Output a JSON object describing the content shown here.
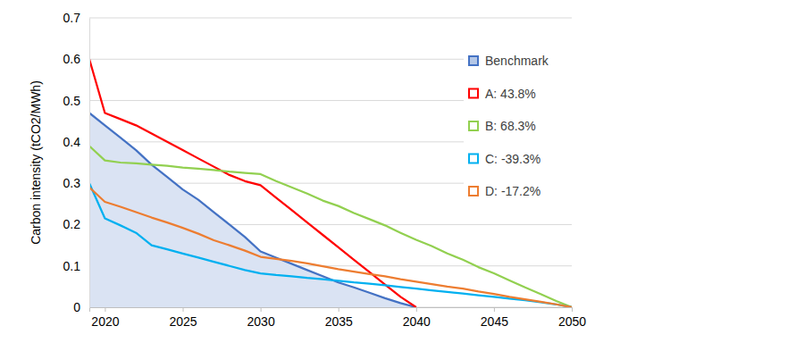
{
  "chart_data": {
    "type": "line",
    "y_label": "Carbon intensity (tCO2/MWh)",
    "x": [
      2019,
      2020,
      2021,
      2022,
      2023,
      2024,
      2025,
      2026,
      2027,
      2028,
      2029,
      2030,
      2031,
      2032,
      2033,
      2034,
      2035,
      2036,
      2037,
      2038,
      2039,
      2040,
      2041,
      2042,
      2043,
      2044,
      2045,
      2046,
      2047,
      2048,
      2049,
      2050
    ],
    "series": [
      {
        "name": "Benchmark",
        "color": "#4472c4",
        "type": "area",
        "values": [
          0.47,
          0.44,
          0.41,
          0.38,
          0.345,
          0.315,
          0.285,
          0.26,
          0.23,
          0.2,
          0.17,
          0.135,
          0.12,
          0.105,
          0.09,
          0.075,
          0.06,
          0.048,
          0.035,
          0.022,
          0.01,
          0,
          null,
          null,
          null,
          null,
          null,
          null,
          null,
          null,
          null,
          null
        ]
      },
      {
        "name": "A: 43.8%",
        "color": "#ff0000",
        "values": [
          0.6,
          0.47,
          0.455,
          0.44,
          0.42,
          0.4,
          0.38,
          0.36,
          0.34,
          0.32,
          0.305,
          0.295,
          0.265,
          0.235,
          0.205,
          0.175,
          0.145,
          0.115,
          0.085,
          0.055,
          0.025,
          0,
          null,
          null,
          null,
          null,
          null,
          null,
          null,
          null,
          null,
          null
        ]
      },
      {
        "name": "B: 68.3%",
        "color": "#92d050",
        "values": [
          0.39,
          0.355,
          0.35,
          0.348,
          0.345,
          0.342,
          0.338,
          0.335,
          0.332,
          0.328,
          0.325,
          0.322,
          0.305,
          0.29,
          0.275,
          0.258,
          0.245,
          0.228,
          0.213,
          0.198,
          0.18,
          0.163,
          0.148,
          0.13,
          0.115,
          0.097,
          0.082,
          0.065,
          0.048,
          0.032,
          0.015,
          0
        ]
      },
      {
        "name": "C: -39.3%",
        "color": "#00b0f0",
        "values": [
          0.3,
          0.215,
          0.198,
          0.18,
          0.15,
          0.14,
          0.13,
          0.12,
          0.11,
          0.1,
          0.09,
          0.082,
          0.078,
          0.075,
          0.071,
          0.068,
          0.064,
          0.06,
          0.057,
          0.053,
          0.049,
          0.045,
          0.041,
          0.037,
          0.033,
          0.029,
          0.025,
          0.021,
          0.017,
          0.012,
          0.007,
          0
        ]
      },
      {
        "name": "D: -17.2%",
        "color": "#ed7d31",
        "values": [
          0.29,
          0.255,
          0.243,
          0.23,
          0.217,
          0.205,
          0.192,
          0.178,
          0.162,
          0.15,
          0.137,
          0.122,
          0.117,
          0.112,
          0.106,
          0.099,
          0.092,
          0.086,
          0.08,
          0.075,
          0.068,
          0.062,
          0.056,
          0.05,
          0.045,
          0.038,
          0.032,
          0.025,
          0.019,
          0.013,
          0.007,
          0
        ]
      }
    ],
    "xlim": [
      2019,
      2050
    ],
    "xticks": [
      2020,
      2025,
      2030,
      2035,
      2040,
      2045,
      2050
    ],
    "ylim": [
      0,
      0.7
    ],
    "yticks": [
      0,
      0.1,
      0.2,
      0.3,
      0.4,
      0.5,
      0.6,
      0.7
    ],
    "grid": true,
    "legend": "right"
  }
}
